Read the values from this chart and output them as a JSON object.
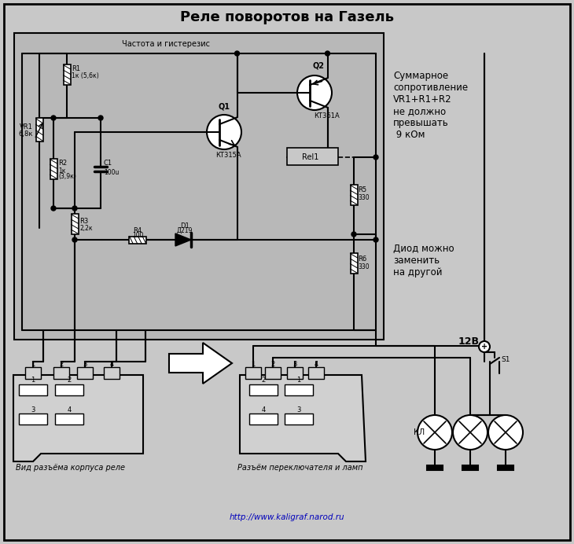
{
  "title": "Реле поворотов на Газель",
  "bg_color": "#c8c8c8",
  "inner_bg": "#c0c0c0",
  "line_color": "#000000",
  "white_color": "#ffffff",
  "blue_text_color": "#0000bb",
  "right_text1": "Суммарное\nсопротивление\nVR1+R1+R2\nне должно\nпревышать\n 9 кОм",
  "right_text2": "Диод можно\nзаменить\nна другой",
  "bottom_text1": "Вид разъёма корпуса реле",
  "bottom_text2": "Разъём переключателя и ламп",
  "url_text": "http://www.kaligraf.narod.ru",
  "label_freq": "Частота и гистерезис",
  "label_12V": "12В",
  "label_S1": "S1",
  "label_KL": "КЛ",
  "label_Rel1": "Rel1",
  "label_Q1": "Q1",
  "label_Q1_type": "КТ315А",
  "label_Q2": "Q2",
  "label_Q2_type": "КТ361А"
}
